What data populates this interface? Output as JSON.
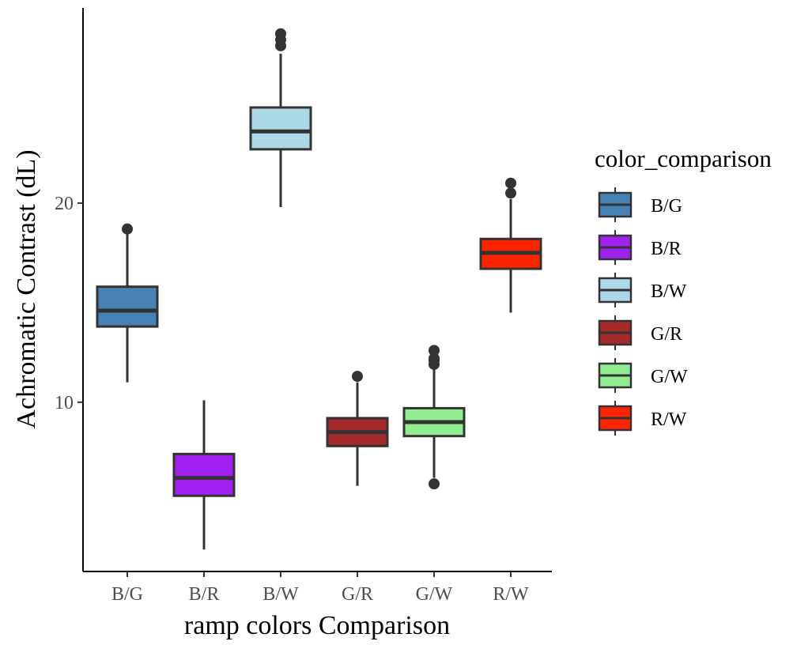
{
  "chart_data": {
    "type": "box",
    "title": "",
    "xlabel": "ramp colors Comparison",
    "ylabel": "Achromatic Contrast (dL)",
    "ylim": [
      1.5,
      29.8
    ],
    "yticks": [
      10,
      20
    ],
    "grid": false,
    "legend_title": "color_comparison",
    "legend_position": "right",
    "categories": [
      "B/G",
      "B/R",
      "B/W",
      "G/R",
      "G/W",
      "R/W"
    ],
    "series": [
      {
        "name": "B/G",
        "color": "#4682B4",
        "whisker_low": 11.0,
        "q1": 13.8,
        "median": 14.6,
        "q3": 15.8,
        "whisker_high": 18.5,
        "outliers": [
          18.7
        ]
      },
      {
        "name": "B/R",
        "color": "#A020F0",
        "whisker_low": 2.6,
        "q1": 5.3,
        "median": 6.2,
        "q3": 7.4,
        "whisker_high": 10.1,
        "outliers": []
      },
      {
        "name": "B/W",
        "color": "#ADD8E6",
        "whisker_low": 19.8,
        "q1": 22.7,
        "median": 23.6,
        "q3": 24.8,
        "whisker_high": 27.5,
        "outliers": [
          27.9,
          28.2,
          28.5
        ]
      },
      {
        "name": "G/R",
        "color": "#A52A2A",
        "whisker_low": 5.8,
        "q1": 7.8,
        "median": 8.5,
        "q3": 9.2,
        "whisker_high": 11.0,
        "outliers": [
          11.3
        ]
      },
      {
        "name": "G/W",
        "color": "#90EE90",
        "whisker_low": 6.2,
        "q1": 8.3,
        "median": 9.0,
        "q3": 9.7,
        "whisker_high": 11.7,
        "outliers": [
          5.9,
          11.9,
          12.1,
          12.2,
          12.6
        ]
      },
      {
        "name": "R/W",
        "color": "#FF2400",
        "whisker_low": 14.5,
        "q1": 16.7,
        "median": 17.5,
        "q3": 18.2,
        "whisker_high": 20.2,
        "outliers": [
          20.5,
          21.0
        ]
      }
    ]
  }
}
